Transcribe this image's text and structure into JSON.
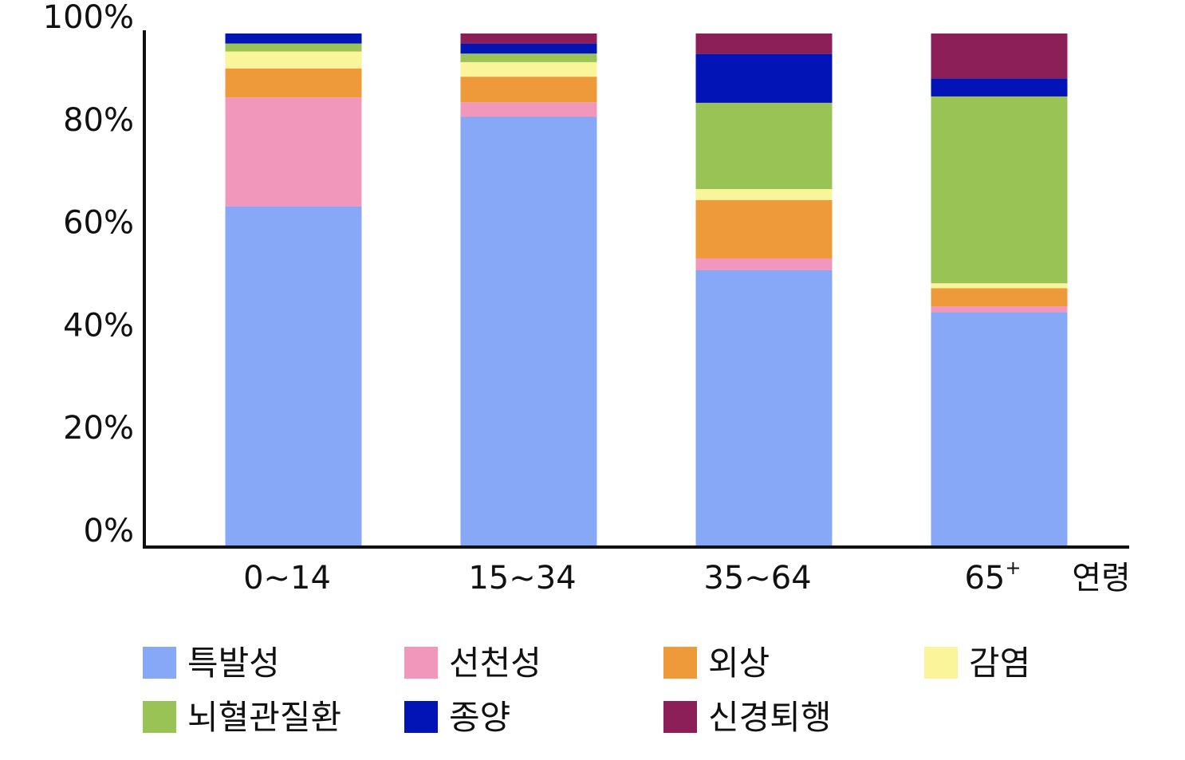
{
  "chart_data": {
    "type": "bar",
    "stacked": true,
    "title": "",
    "xlabel": "연령",
    "ylabel": "",
    "ylim": [
      0,
      100
    ],
    "y_ticks": [
      "0%",
      "20%",
      "40%",
      "60%",
      "80%",
      "100%"
    ],
    "categories": [
      "0~14",
      "15~34",
      "35~64",
      "65+"
    ],
    "category_labels": [
      {
        "base": "0~14",
        "sup": ""
      },
      {
        "base": "15~34",
        "sup": ""
      },
      {
        "base": "35~64",
        "sup": ""
      },
      {
        "base": "65",
        "sup": "+"
      }
    ],
    "series": [
      {
        "name": "특발성",
        "color": "#86A8F6",
        "values": [
          68.1,
          85.7,
          55.5,
          47.0
        ]
      },
      {
        "name": "선천성",
        "color": "#F097BB",
        "values": [
          21.8,
          2.9,
          2.4,
          1.2
        ]
      },
      {
        "name": "외상",
        "color": "#EF9A3A",
        "values": [
          5.8,
          5.1,
          11.7,
          3.6
        ]
      },
      {
        "name": "감염",
        "color": "#FAF59A",
        "values": [
          3.4,
          2.9,
          2.2,
          1.0
        ]
      },
      {
        "name": "뇌혈관질환",
        "color": "#99C455",
        "values": [
          1.6,
          1.7,
          17.3,
          37.4
        ]
      },
      {
        "name": "종양",
        "color": "#0214B6",
        "values": [
          2.0,
          2.0,
          9.8,
          3.6
        ]
      },
      {
        "name": "신경퇴행",
        "color": "#8D1F58",
        "values": [
          0.0,
          2.0,
          4.1,
          9.0
        ]
      }
    ],
    "legend_position": "bottom",
    "grid": false
  }
}
